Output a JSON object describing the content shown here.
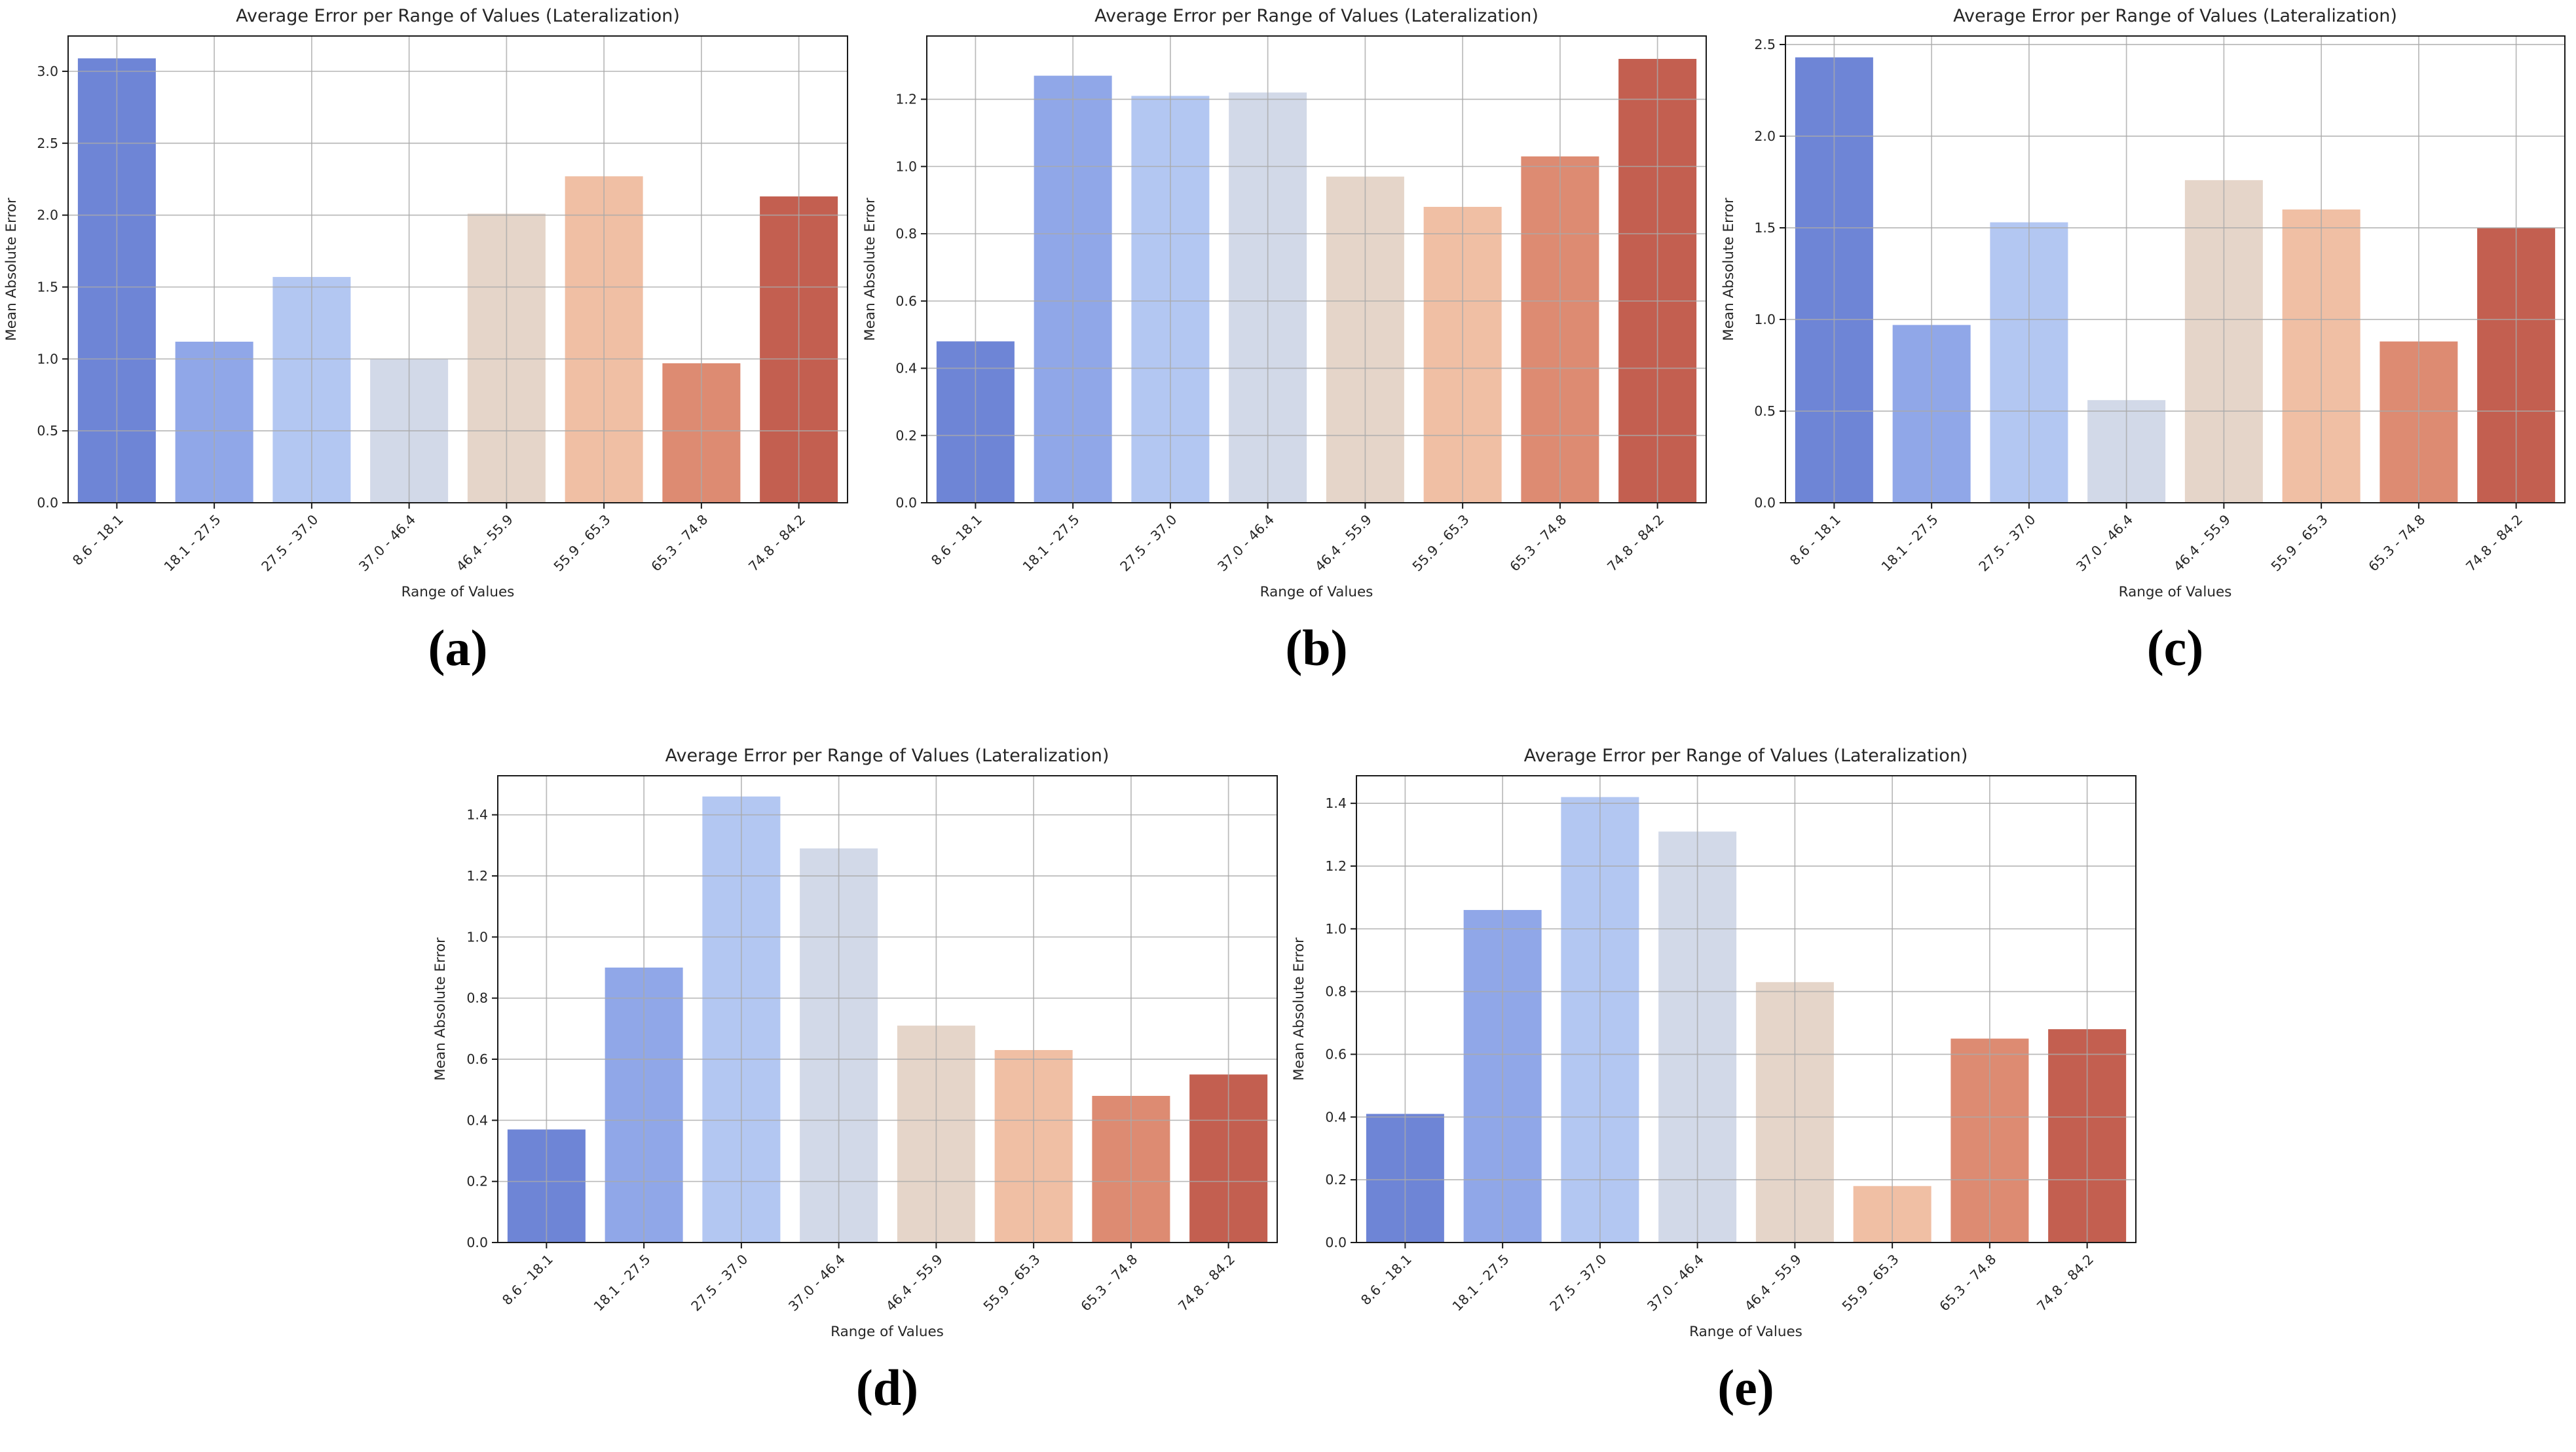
{
  "figure": {
    "bar_colors": [
      "#6e85d6",
      "#90a7e8",
      "#b3c7f2",
      "#d2d9e8",
      "#e5d5c9",
      "#f0bfa4",
      "#dd8b72",
      "#c35f50"
    ],
    "grid_color": "#aaaaaa",
    "spine_color": "#1a1a1a",
    "text_color": "#262626"
  },
  "chart_data": [
    {
      "id": "a",
      "type": "bar",
      "title": "Average Error per Range of Values (Lateralization)",
      "xlabel": "Range of Values",
      "ylabel": "Mean Absolute Error",
      "caption": "(a)",
      "categories": [
        "8.6 - 18.1",
        "18.1 - 27.5",
        "27.5 - 37.0",
        "37.0 - 46.4",
        "46.4 - 55.9",
        "55.9 - 65.3",
        "65.3 - 74.8",
        "74.8 - 84.2"
      ],
      "values": [
        3.09,
        1.12,
        1.57,
        1.0,
        2.01,
        2.27,
        0.97,
        2.13
      ],
      "yticks": [
        0.0,
        0.5,
        1.0,
        1.5,
        2.0,
        2.5,
        3.0
      ],
      "ylim": [
        0,
        3.25
      ],
      "grid": true,
      "legend": "none"
    },
    {
      "id": "b",
      "type": "bar",
      "title": "Average Error per Range of Values (Lateralization)",
      "xlabel": "Range of Values",
      "ylabel": "Mean Absolute Error",
      "caption": "(b)",
      "categories": [
        "8.6 - 18.1",
        "18.1 - 27.5",
        "27.5 - 37.0",
        "37.0 - 46.4",
        "46.4 - 55.9",
        "55.9 - 65.3",
        "65.3 - 74.8",
        "74.8 - 84.2"
      ],
      "values": [
        0.48,
        1.27,
        1.21,
        1.22,
        0.97,
        0.88,
        1.03,
        1.32
      ],
      "yticks": [
        0.0,
        0.2,
        0.4,
        0.6,
        0.8,
        1.0,
        1.2
      ],
      "ylim": [
        0,
        1.39
      ],
      "grid": true,
      "legend": "none"
    },
    {
      "id": "c",
      "type": "bar",
      "title": "Average Error per Range of Values (Lateralization)",
      "xlabel": "Range of Values",
      "ylabel": "Mean Absolute Error",
      "caption": "(c)",
      "categories": [
        "8.6 - 18.1",
        "18.1 - 27.5",
        "27.5 - 37.0",
        "37.0 - 46.4",
        "46.4 - 55.9",
        "55.9 - 65.3",
        "65.3 - 74.8",
        "74.8 - 84.2"
      ],
      "values": [
        2.43,
        0.97,
        1.53,
        0.56,
        1.76,
        1.6,
        0.88,
        1.5
      ],
      "yticks": [
        0.0,
        0.5,
        1.0,
        1.5,
        2.0,
        2.5
      ],
      "ylim": [
        0,
        2.55
      ],
      "grid": true,
      "legend": "none"
    },
    {
      "id": "d",
      "type": "bar",
      "title": "Average Error per Range of Values (Lateralization)",
      "xlabel": "Range of Values",
      "ylabel": "Mean Absolute Error",
      "caption": "(d)",
      "categories": [
        "8.6 - 18.1",
        "18.1 - 27.5",
        "27.5 - 37.0",
        "37.0 - 46.4",
        "46.4 - 55.9",
        "55.9 - 65.3",
        "65.3 - 74.8",
        "74.8 - 84.2"
      ],
      "values": [
        0.37,
        0.9,
        1.46,
        1.29,
        0.71,
        0.63,
        0.48,
        0.55
      ],
      "yticks": [
        0.0,
        0.2,
        0.4,
        0.6,
        0.8,
        1.0,
        1.2,
        1.4
      ],
      "ylim": [
        0,
        1.53
      ],
      "grid": true,
      "legend": "none"
    },
    {
      "id": "e",
      "type": "bar",
      "title": "Average Error per Range of Values (Lateralization)",
      "xlabel": "Range of Values",
      "ylabel": "Mean Absolute Error",
      "caption": "(e)",
      "categories": [
        "8.6 - 18.1",
        "18.1 - 27.5",
        "27.5 - 37.0",
        "37.0 - 46.4",
        "46.4 - 55.9",
        "55.9 - 65.3",
        "65.3 - 74.8",
        "74.8 - 84.2"
      ],
      "values": [
        0.41,
        1.06,
        1.42,
        1.31,
        0.83,
        0.18,
        0.65,
        0.68
      ],
      "yticks": [
        0.0,
        0.2,
        0.4,
        0.6,
        0.8,
        1.0,
        1.2,
        1.4
      ],
      "ylim": [
        0,
        1.49
      ],
      "grid": true,
      "legend": "none"
    }
  ]
}
